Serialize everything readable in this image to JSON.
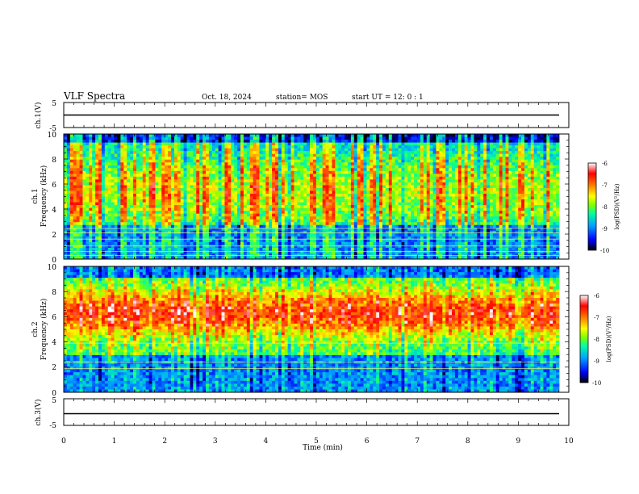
{
  "header": {
    "title": "VLF Spectra",
    "date": "Oct. 18, 2024",
    "station": "station= MOS",
    "start": "start  UT =  12: 0  : 1"
  },
  "chart_data": [
    {
      "type": "line",
      "panel": "ch1-waveform",
      "ylabel": "ch.1(V)",
      "ylim": [
        -5,
        5
      ],
      "yticks": [
        "5",
        "-5"
      ],
      "trace_level": 0,
      "color": "#000000"
    },
    {
      "type": "heatmap",
      "panel": "ch1-spectrogram",
      "ylabel": "ch.1\nFrequency  (kHz)",
      "ylim": [
        0,
        10
      ],
      "yticks": [
        "10",
        "8",
        "6",
        "4",
        "2",
        "0"
      ],
      "xlim": [
        0,
        10
      ],
      "colorbar": {
        "label": "log(PSD)(V²/Hz)",
        "ticks": [
          "-6",
          "-7",
          "-8",
          "-9",
          "-10"
        ],
        "range": [
          -10,
          -6
        ]
      },
      "horizontal_lines_khz": [
        0.3,
        0.6,
        1.05,
        1.6,
        2.1,
        2.45
      ],
      "profile": "broadband impulsive sferics, strongest 4–10 kHz, quieter below 3 kHz"
    },
    {
      "type": "heatmap",
      "panel": "ch2-spectrogram",
      "ylabel": "ch.2\nFrequency  (kHz)",
      "ylim": [
        0,
        10
      ],
      "yticks": [
        "10",
        "8",
        "6",
        "4",
        "2",
        "0"
      ],
      "xlim": [
        0,
        10
      ],
      "colorbar": {
        "label": "log(PSD)(V²/Hz)",
        "ticks": [
          "-6",
          "-7",
          "-8",
          "-9",
          "-10"
        ],
        "range": [
          -10,
          -6
        ]
      },
      "horizontal_lines_khz": [
        1.9,
        2.4,
        3.9
      ],
      "profile": "persistent band peaking near 5–7 kHz, low power below 3 kHz and near 10 kHz"
    },
    {
      "type": "line",
      "panel": "ch3-waveform",
      "ylabel": "ch.3(V)",
      "ylim": [
        -5,
        5
      ],
      "yticks": [
        "5",
        "-5"
      ],
      "trace_level": 0,
      "color": "#000000"
    }
  ],
  "xaxis": {
    "label": "Time  (min)",
    "ticks": [
      "0",
      "1",
      "2",
      "3",
      "4",
      "5",
      "6",
      "7",
      "8",
      "9",
      "10"
    ],
    "range": [
      0,
      10
    ]
  },
  "colors": {
    "colormap": [
      "#000000",
      "#0000ff",
      "#00a0ff",
      "#00ffa0",
      "#80ff00",
      "#ffff00",
      "#ff8000",
      "#ff0000",
      "#ffffff"
    ]
  }
}
